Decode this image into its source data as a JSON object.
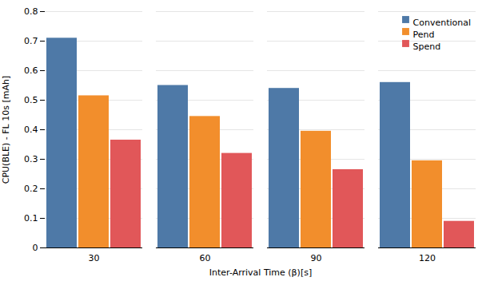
{
  "chart_data": {
    "type": "bar",
    "categories": [
      "30",
      "60",
      "90",
      "120"
    ],
    "series": [
      {
        "name": "Conventional",
        "values": [
          0.71,
          0.55,
          0.54,
          0.56
        ]
      },
      {
        "name": "Pend",
        "values": [
          0.515,
          0.445,
          0.395,
          0.295
        ]
      },
      {
        "name": "Spend",
        "values": [
          0.365,
          0.32,
          0.265,
          0.09
        ]
      }
    ],
    "xlabel": "Inter-Arrival Time (β)[s]",
    "ylabel": "CPU(BLE) - FL 10s [mAh]",
    "ylim": [
      0,
      0.8
    ],
    "yticks": [
      0,
      0.1,
      0.2,
      0.3,
      0.4,
      0.5,
      0.6,
      0.7,
      0.8
    ],
    "grid": true,
    "legend": "upper right"
  }
}
